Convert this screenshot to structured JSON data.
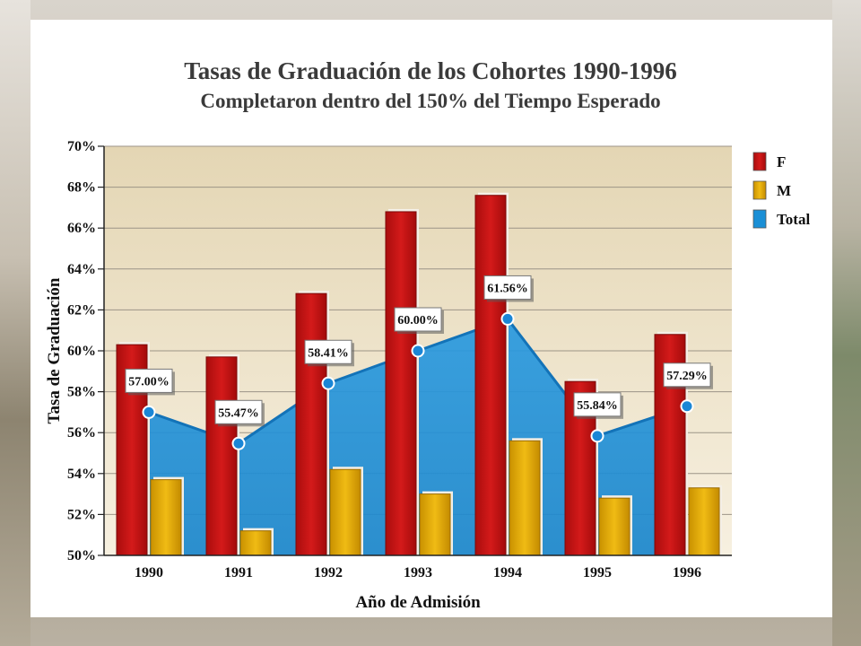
{
  "chart_data": {
    "type": "bar",
    "title": "Tasas de Graduación de los Cohortes 1990-1996",
    "subtitle": "Completaron dentro del 150% del Tiempo Esperado",
    "xlabel": "Año de Admisión",
    "ylabel": "Tasa de Graduación",
    "categories": [
      "1990",
      "1991",
      "1992",
      "1993",
      "1994",
      "1995",
      "1996"
    ],
    "ylim": [
      50,
      70
    ],
    "yticks": [
      "50%",
      "52%",
      "54%",
      "56%",
      "58%",
      "60%",
      "62%",
      "64%",
      "66%",
      "68%",
      "70%"
    ],
    "grid": true,
    "legend_position": "right",
    "series": [
      {
        "name": "F",
        "kind": "bar",
        "color": "#c01414",
        "values": [
          60.3,
          59.7,
          62.8,
          66.8,
          67.6,
          58.5,
          60.8
        ]
      },
      {
        "name": "M",
        "kind": "bar",
        "color": "#e0a800",
        "values": [
          53.7,
          51.2,
          54.2,
          53.0,
          55.6,
          52.8,
          53.3
        ]
      },
      {
        "name": "Total",
        "kind": "area",
        "color": "#1a8fd6",
        "values": [
          57.0,
          55.47,
          58.41,
          60.0,
          61.56,
          55.84,
          57.29
        ],
        "labels": [
          "57.00%",
          "55.47%",
          "58.41%",
          "60.00%",
          "61.56%",
          "55.84%",
          "57.29%"
        ]
      }
    ]
  }
}
